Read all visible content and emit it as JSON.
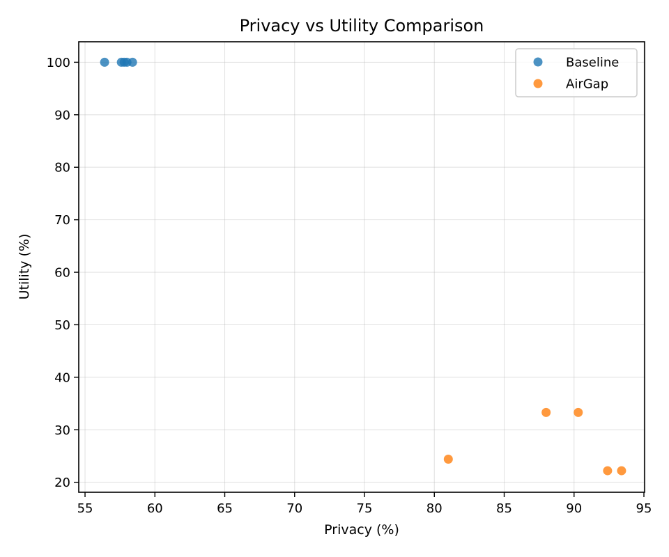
{
  "chart_data": {
    "type": "scatter",
    "title": "Privacy vs Utility Comparison",
    "xlabel": "Privacy (%)",
    "ylabel": "Utility (%)",
    "xlim": [
      54.55,
      95.05
    ],
    "ylim": [
      18.1,
      103.9
    ],
    "xticks": [
      55,
      60,
      65,
      70,
      75,
      80,
      85,
      90,
      95
    ],
    "yticks": [
      20,
      30,
      40,
      50,
      60,
      70,
      80,
      90,
      100
    ],
    "grid": true,
    "legend_position": "top-right",
    "series": [
      {
        "name": "Baseline",
        "color": "#1f77b4",
        "points": [
          {
            "x": 56.4,
            "y": 100.0
          },
          {
            "x": 57.6,
            "y": 100.0
          },
          {
            "x": 57.8,
            "y": 100.0
          },
          {
            "x": 58.0,
            "y": 100.0
          },
          {
            "x": 58.4,
            "y": 100.0
          }
        ]
      },
      {
        "name": "AirGap",
        "color": "#ff7f0e",
        "points": [
          {
            "x": 81.0,
            "y": 24.4
          },
          {
            "x": 88.0,
            "y": 33.3
          },
          {
            "x": 90.3,
            "y": 33.3
          },
          {
            "x": 92.4,
            "y": 22.2
          },
          {
            "x": 93.4,
            "y": 22.2
          }
        ]
      }
    ]
  }
}
